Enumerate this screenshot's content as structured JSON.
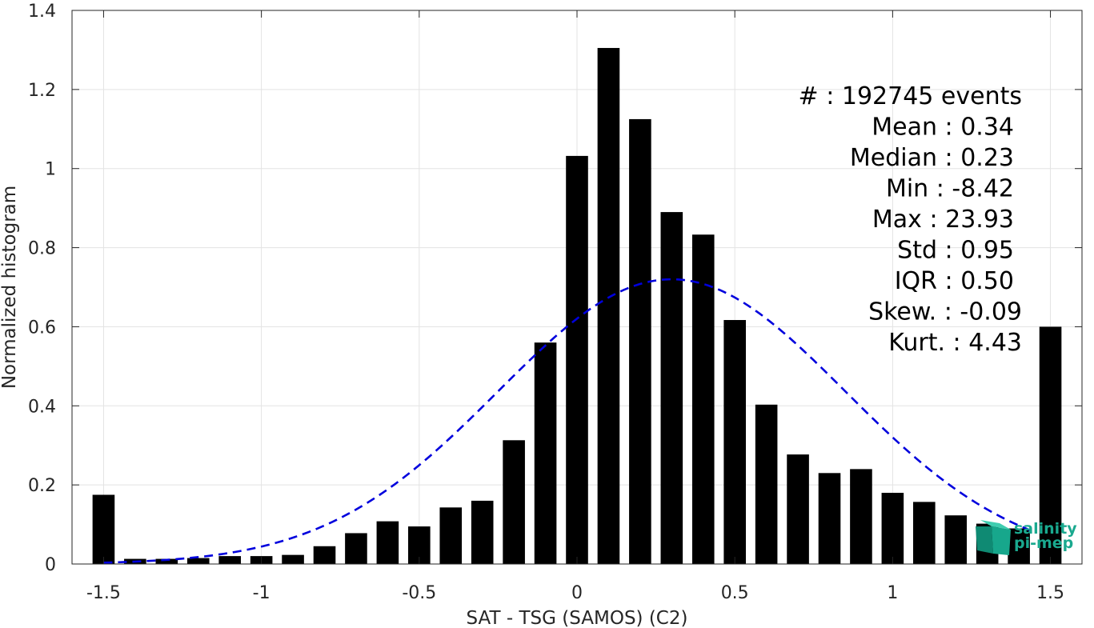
{
  "chart_data": {
    "type": "bar",
    "xlabel": "SAT - TSG (SAMOS) (C2)",
    "ylabel": "Normalized histogram",
    "xlim": [
      -1.6,
      1.6
    ],
    "ylim": [
      0,
      1.4
    ],
    "x_ticks": [
      -1.5,
      -1,
      -0.5,
      0,
      0.5,
      1,
      1.5
    ],
    "x_tick_labels": [
      "-1.5",
      "-1",
      "-0.5",
      "0",
      "0.5",
      "1",
      "1.5"
    ],
    "y_ticks": [
      0,
      0.2,
      0.4,
      0.6,
      0.8,
      1,
      1.2,
      1.4
    ],
    "y_tick_labels": [
      "0",
      "0.2",
      "0.4",
      "0.6",
      "0.8",
      "1",
      "1.2",
      "1.4"
    ],
    "grid": true,
    "bar_width": 0.07,
    "bar_color": "#000000",
    "x": [
      -1.5,
      -1.4,
      -1.3,
      -1.2,
      -1.1,
      -1.0,
      -0.9,
      -0.8,
      -0.7,
      -0.6,
      -0.5,
      -0.4,
      -0.3,
      -0.2,
      -0.1,
      0.0,
      0.1,
      0.2,
      0.3,
      0.4,
      0.5,
      0.6,
      0.7,
      0.8,
      0.9,
      1.0,
      1.1,
      1.2,
      1.3,
      1.4,
      1.5
    ],
    "values": [
      0.175,
      0.013,
      0.013,
      0.015,
      0.02,
      0.02,
      0.023,
      0.045,
      0.078,
      0.108,
      0.095,
      0.143,
      0.16,
      0.313,
      0.56,
      1.032,
      1.305,
      1.125,
      0.89,
      0.833,
      0.617,
      0.403,
      0.277,
      0.23,
      0.24,
      0.18,
      0.157,
      0.123,
      0.102,
      0.09,
      0.6
    ],
    "fit_curve": {
      "type": "gaussian",
      "mean": 0.3,
      "std": 0.55,
      "peak": 0.72,
      "x_range": [
        -1.5,
        1.45
      ],
      "color": "#0000dd",
      "style": "dashed"
    },
    "stats": [
      "#  : 192745 events",
      "Mean : 0.34",
      "Median : 0.23",
      "Min : -8.42",
      "Max : 23.93",
      "Std : 0.95",
      "IQR : 0.50",
      "Skew. : -0.09",
      "Kurt. : 4.43"
    ]
  },
  "logo": {
    "line1": "salinity",
    "line2": "pi-mep",
    "color": "#1aa98f"
  }
}
